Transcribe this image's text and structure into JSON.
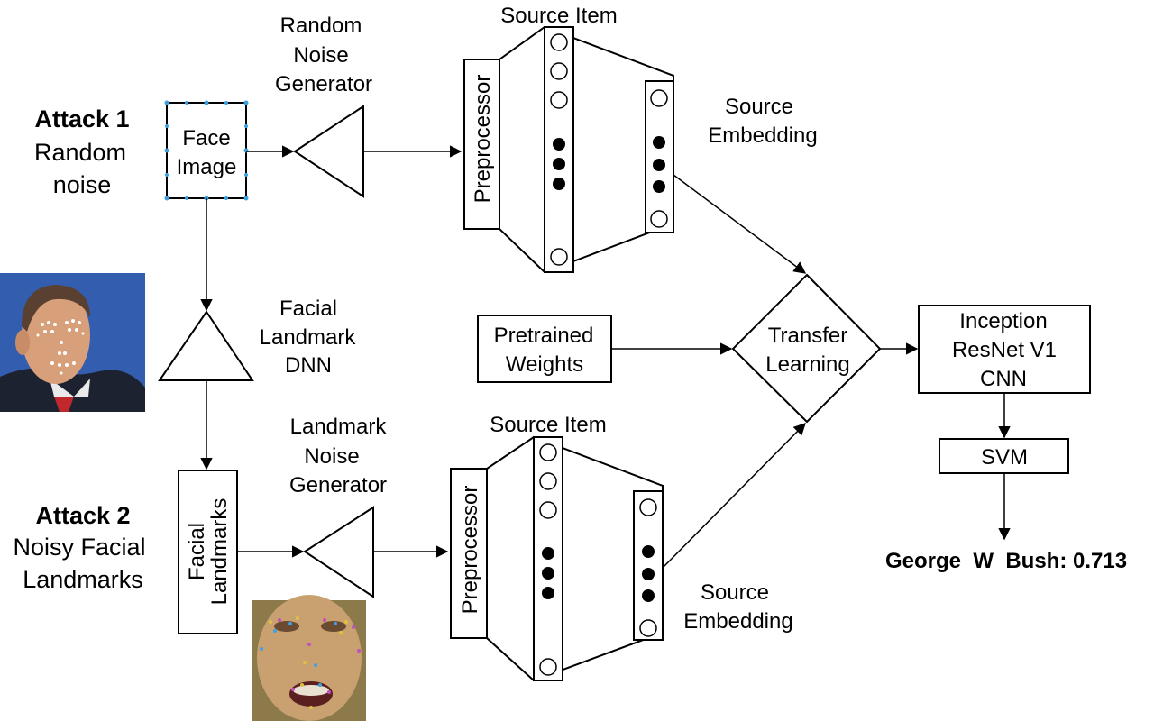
{
  "attack1": {
    "title": "Attack 1",
    "line1": "Random",
    "line2": "noise"
  },
  "attack2": {
    "title": "Attack 2",
    "line1": "Noisy  Facial",
    "line2": "Landmarks"
  },
  "face_image": {
    "line1": "Face",
    "line2": "Image"
  },
  "random_noise_generator": {
    "line1": "Random",
    "line2": "Noise",
    "line3": "Generator"
  },
  "facial_landmark_dnn": {
    "line1": "Facial",
    "line2": "Landmark",
    "line3": "DNN"
  },
  "facial_landmarks_box": {
    "line1": "Facial",
    "line2": "Landmarks"
  },
  "landmark_noise_generator": {
    "line1": "Landmark",
    "line2": "Noise",
    "line3": "Generator"
  },
  "top_network": {
    "source_item": "Source Item",
    "preprocessor": "Preprocessor",
    "source_embedding_line1": "Source",
    "source_embedding_line2": "Embedding"
  },
  "bottom_network": {
    "source_item": "Source Item",
    "preprocessor": "Preprocessor",
    "source_embedding_line1": "Source",
    "source_embedding_line2": "Embedding"
  },
  "pretrained_weights": {
    "line1": "Pretrained",
    "line2": "Weights"
  },
  "transfer_learning": {
    "line1": "Transfer",
    "line2": "Learning"
  },
  "inception": {
    "line1": "Inception",
    "line2": "ResNet V1",
    "line3": "CNN"
  },
  "svm": {
    "label": "SVM"
  },
  "result": {
    "label": "George_W_Bush: 0.713"
  },
  "photo_colors": {
    "background": "#2b56a8",
    "skin": "#d8a07a",
    "suit": "#1d2230",
    "tie": "#c0282c",
    "landmark_dot": "#ffffff"
  }
}
